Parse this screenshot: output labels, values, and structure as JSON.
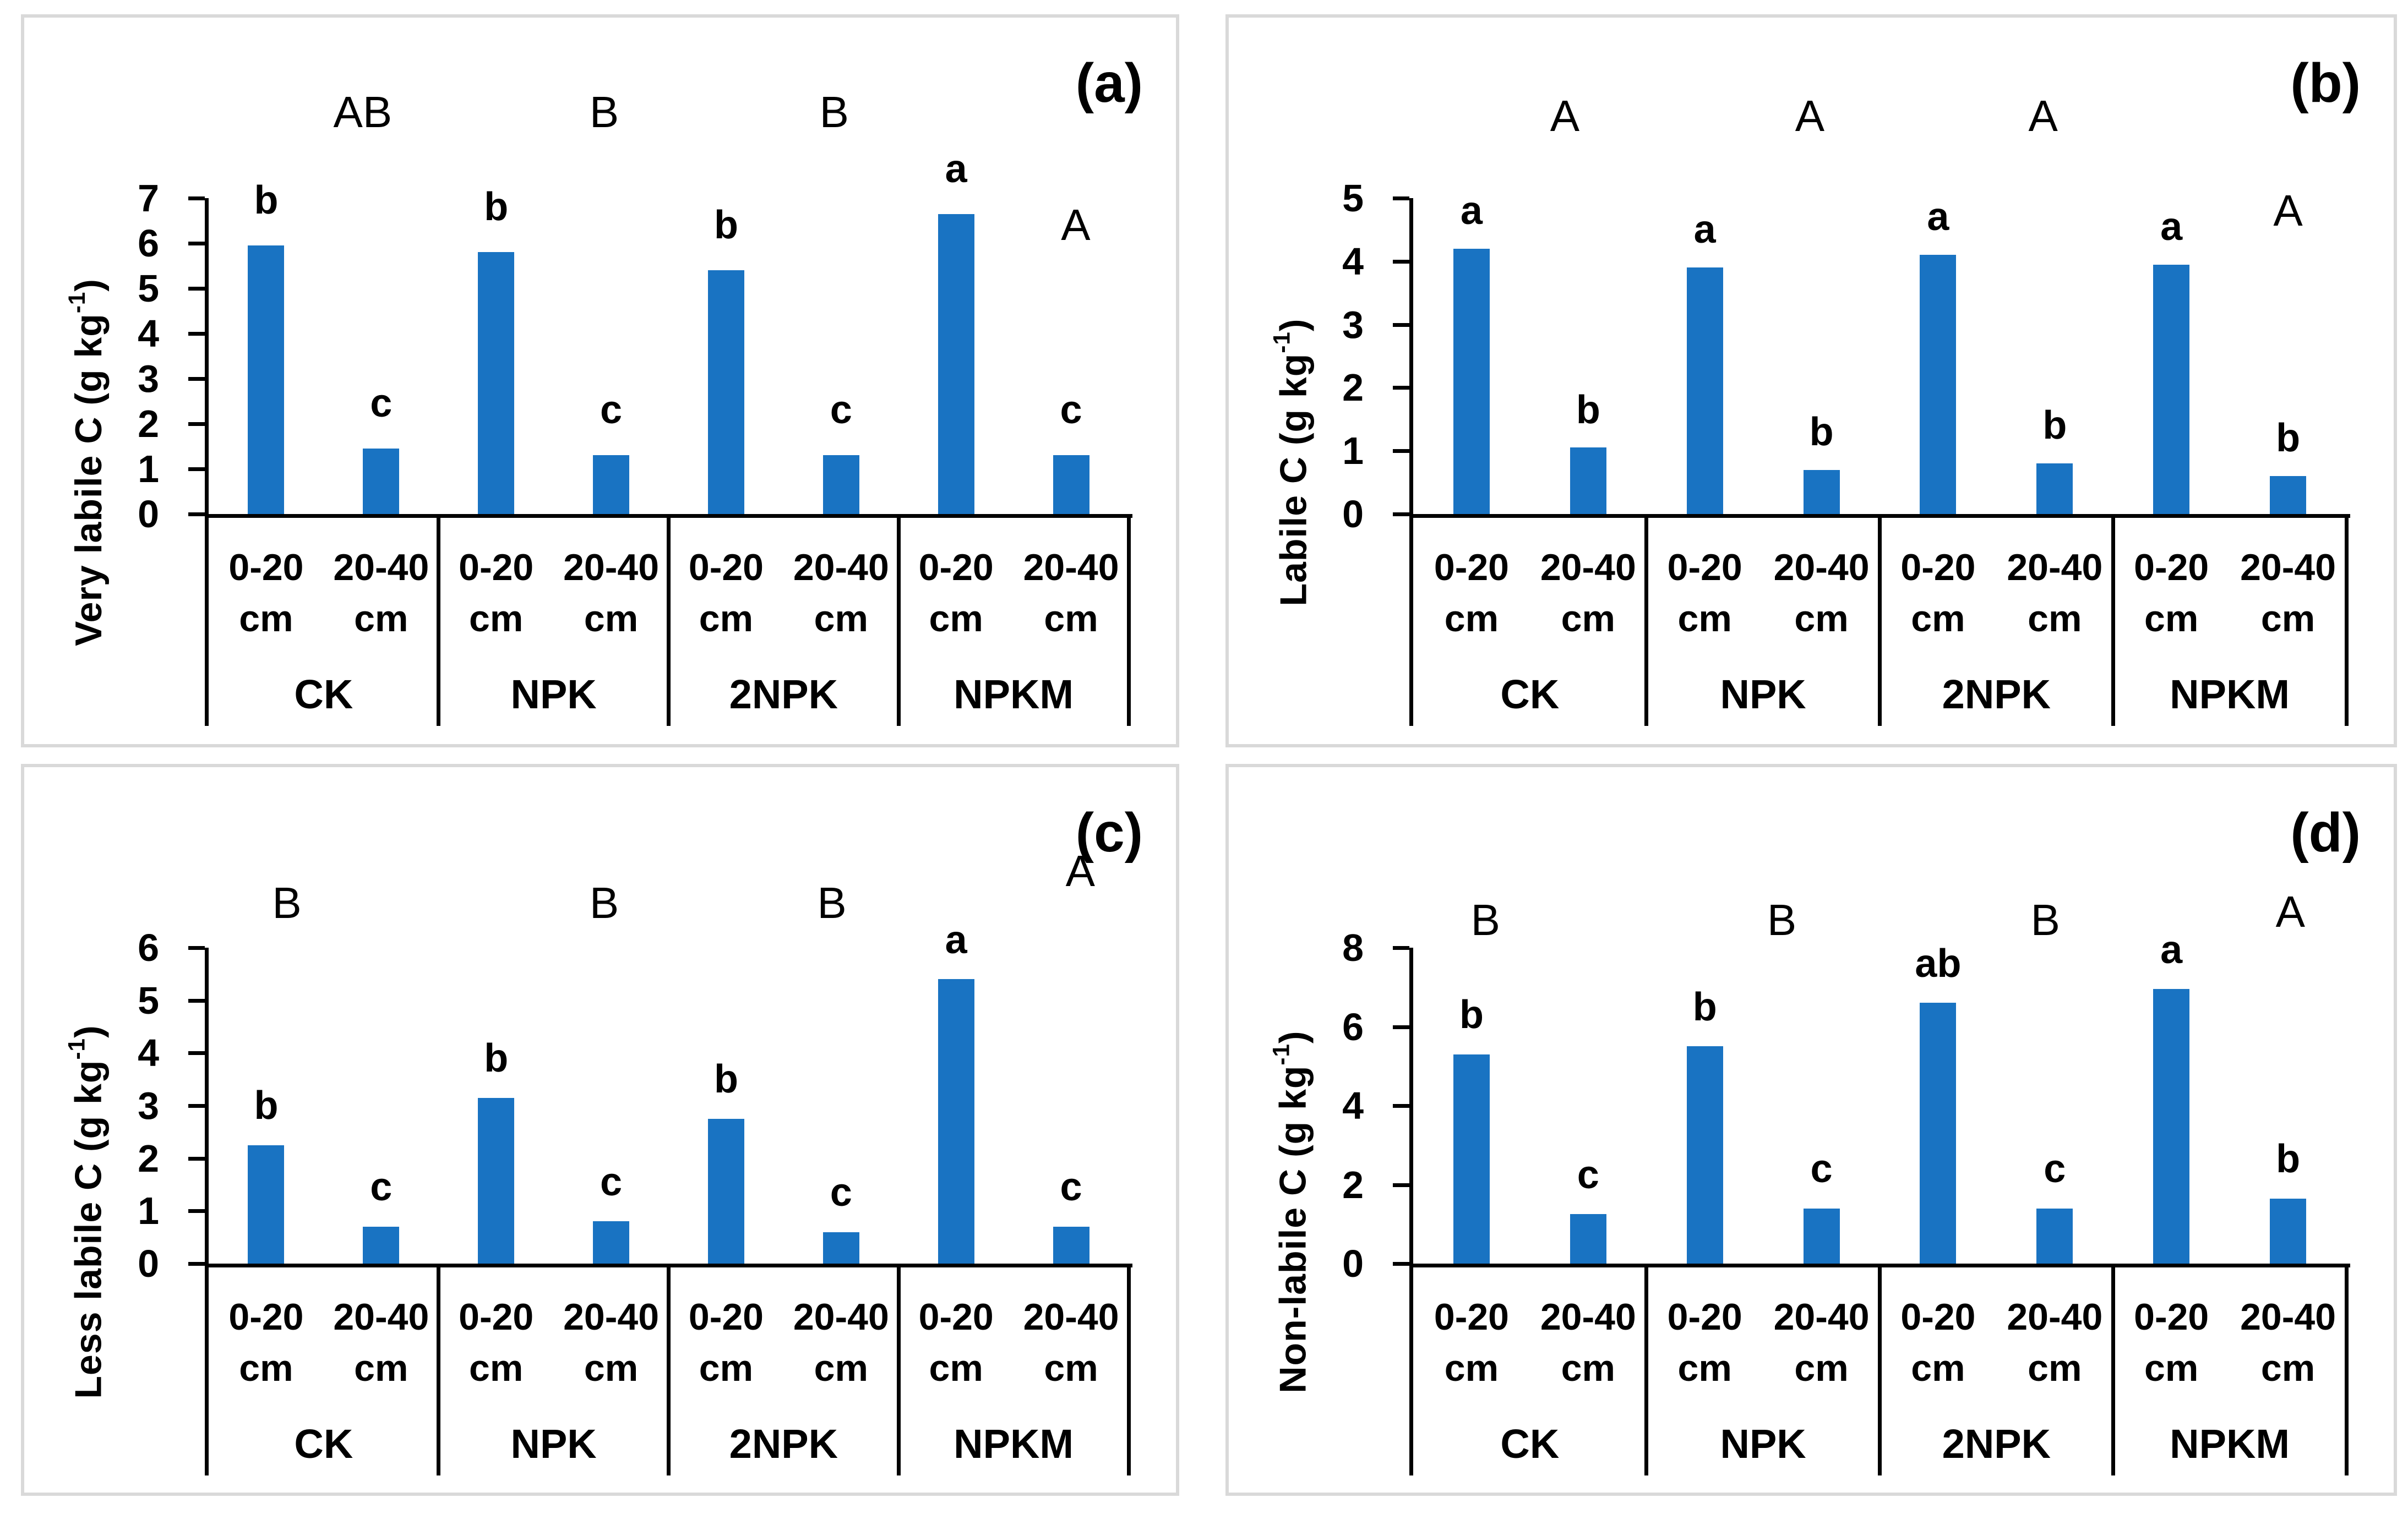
{
  "figure": {
    "background": "#ffffff",
    "panel_border_color": "#d9d9d9",
    "bar_color": "#1973c2",
    "axis_color": "#000000",
    "text_color": "#000000"
  },
  "chart_data": [
    {
      "type": "bar",
      "tag": "(a)",
      "ylabel_pre": "Very labile C (g kg",
      "ylabel_sup": "-1",
      "ylabel_post": ")",
      "ylim": [
        0,
        7
      ],
      "ystep": 1,
      "yticks": [
        0,
        1,
        2,
        3,
        4,
        5,
        6,
        7
      ],
      "bar_letter_offset": 1.0,
      "depth_unit": "cm",
      "grid": false,
      "groups": [
        {
          "name": "CK",
          "letter": "AB",
          "letter_y": 8.9,
          "letter_x": 0.67,
          "bars": [
            {
              "depth": "0-20",
              "unit": "cm",
              "value": 5.95,
              "letter": "b"
            },
            {
              "depth": "20-40",
              "unit": "cm",
              "value": 1.45,
              "letter": "c"
            }
          ]
        },
        {
          "name": "NPK",
          "letter": "B",
          "letter_y": 8.9,
          "letter_x": 0.72,
          "bars": [
            {
              "depth": "0-20",
              "unit": "cm",
              "value": 5.8,
              "letter": "b"
            },
            {
              "depth": "20-40",
              "unit": "cm",
              "value": 1.3,
              "letter": "c"
            }
          ]
        },
        {
          "name": "2NPK",
          "letter": "B",
          "letter_y": 8.9,
          "letter_x": 0.72,
          "bars": [
            {
              "depth": "0-20",
              "unit": "cm",
              "value": 5.4,
              "letter": "b"
            },
            {
              "depth": "20-40",
              "unit": "cm",
              "value": 1.3,
              "letter": "c"
            }
          ]
        },
        {
          "name": "NPKM",
          "letter": "A",
          "letter_y": 6.4,
          "letter_x": 0.77,
          "bars": [
            {
              "depth": "0-20",
              "unit": "cm",
              "value": 6.65,
              "letter": "a"
            },
            {
              "depth": "20-40",
              "unit": "cm",
              "value": 1.3,
              "letter": "c"
            }
          ]
        }
      ]
    },
    {
      "type": "bar",
      "tag": "(b)",
      "ylabel_pre": "Labile C (g kg",
      "ylabel_sup": "-1",
      "ylabel_post": ")",
      "ylim": [
        0,
        5
      ],
      "ystep": 1,
      "yticks": [
        0,
        1,
        2,
        3,
        4,
        5
      ],
      "bar_letter_offset": 0.6,
      "depth_unit": "cm",
      "grid": false,
      "groups": [
        {
          "name": "CK",
          "letter": "A",
          "letter_y": 6.3,
          "letter_x": 0.65,
          "bars": [
            {
              "depth": "0-20",
              "unit": "cm",
              "value": 4.2,
              "letter": "a"
            },
            {
              "depth": "20-40",
              "unit": "cm",
              "value": 1.05,
              "letter": "b"
            }
          ]
        },
        {
          "name": "NPK",
          "letter": "A",
          "letter_y": 6.3,
          "letter_x": 0.7,
          "bars": [
            {
              "depth": "0-20",
              "unit": "cm",
              "value": 3.9,
              "letter": "a"
            },
            {
              "depth": "20-40",
              "unit": "cm",
              "value": 0.7,
              "letter": "b"
            }
          ]
        },
        {
          "name": "2NPK",
          "letter": "A",
          "letter_y": 6.3,
          "letter_x": 0.7,
          "bars": [
            {
              "depth": "0-20",
              "unit": "cm",
              "value": 4.1,
              "letter": "a"
            },
            {
              "depth": "20-40",
              "unit": "cm",
              "value": 0.8,
              "letter": "b"
            }
          ]
        },
        {
          "name": "NPKM",
          "letter": "A",
          "letter_y": 4.8,
          "letter_x": 0.75,
          "bars": [
            {
              "depth": "0-20",
              "unit": "cm",
              "value": 3.95,
              "letter": "a"
            },
            {
              "depth": "20-40",
              "unit": "cm",
              "value": 0.6,
              "letter": "b"
            }
          ]
        }
      ]
    },
    {
      "type": "bar",
      "tag": "(c)",
      "ylabel_pre": "Less labile C (g kg",
      "ylabel_sup": "-1",
      "ylabel_post": ")",
      "ylim": [
        0,
        6
      ],
      "ystep": 1,
      "yticks": [
        0,
        1,
        2,
        3,
        4,
        5,
        6
      ],
      "bar_letter_offset": 0.75,
      "depth_unit": "cm",
      "grid": false,
      "groups": [
        {
          "name": "CK",
          "letter": "B",
          "letter_y": 6.85,
          "letter_x": 0.34,
          "bars": [
            {
              "depth": "0-20",
              "unit": "cm",
              "value": 2.25,
              "letter": "b"
            },
            {
              "depth": "20-40",
              "unit": "cm",
              "value": 0.7,
              "letter": "c"
            }
          ]
        },
        {
          "name": "NPK",
          "letter": "B",
          "letter_y": 6.85,
          "letter_x": 0.72,
          "bars": [
            {
              "depth": "0-20",
              "unit": "cm",
              "value": 3.15,
              "letter": "b"
            },
            {
              "depth": "20-40",
              "unit": "cm",
              "value": 0.8,
              "letter": "c"
            }
          ]
        },
        {
          "name": "2NPK",
          "letter": "B",
          "letter_y": 6.85,
          "letter_x": 0.71,
          "bars": [
            {
              "depth": "0-20",
              "unit": "cm",
              "value": 2.75,
              "letter": "b"
            },
            {
              "depth": "20-40",
              "unit": "cm",
              "value": 0.6,
              "letter": "c"
            }
          ]
        },
        {
          "name": "NPKM",
          "letter": "A",
          "letter_y": 7.45,
          "letter_x": 0.79,
          "bars": [
            {
              "depth": "0-20",
              "unit": "cm",
              "value": 5.4,
              "letter": "a"
            },
            {
              "depth": "20-40",
              "unit": "cm",
              "value": 0.7,
              "letter": "c"
            }
          ]
        }
      ]
    },
    {
      "type": "bar",
      "tag": "(d)",
      "ylabel_pre": "Non-labile C (g kg",
      "ylabel_sup": "-1",
      "ylabel_post": ")",
      "ylim": [
        0,
        8
      ],
      "ystep": 2,
      "yticks": [
        0,
        2,
        4,
        6,
        8
      ],
      "bar_letter_offset": 1.0,
      "depth_unit": "cm",
      "grid": false,
      "groups": [
        {
          "name": "CK",
          "letter": "B",
          "letter_y": 8.7,
          "letter_x": 0.31,
          "bars": [
            {
              "depth": "0-20",
              "unit": "cm",
              "value": 5.3,
              "letter": "b"
            },
            {
              "depth": "20-40",
              "unit": "cm",
              "value": 1.25,
              "letter": "c"
            }
          ]
        },
        {
          "name": "NPK",
          "letter": "B",
          "letter_y": 8.7,
          "letter_x": 0.58,
          "bars": [
            {
              "depth": "0-20",
              "unit": "cm",
              "value": 5.5,
              "letter": "b"
            },
            {
              "depth": "20-40",
              "unit": "cm",
              "value": 1.4,
              "letter": "c"
            }
          ]
        },
        {
          "name": "2NPK",
          "letter": "B",
          "letter_y": 8.7,
          "letter_x": 0.71,
          "bars": [
            {
              "depth": "0-20",
              "unit": "cm",
              "value": 6.6,
              "letter": "ab"
            },
            {
              "depth": "20-40",
              "unit": "cm",
              "value": 1.4,
              "letter": "c"
            }
          ]
        },
        {
          "name": "NPKM",
          "letter": "A",
          "letter_y": 8.9,
          "letter_x": 0.76,
          "bars": [
            {
              "depth": "0-20",
              "unit": "cm",
              "value": 6.95,
              "letter": "a"
            },
            {
              "depth": "20-40",
              "unit": "cm",
              "value": 1.65,
              "letter": "b"
            }
          ]
        }
      ]
    }
  ]
}
